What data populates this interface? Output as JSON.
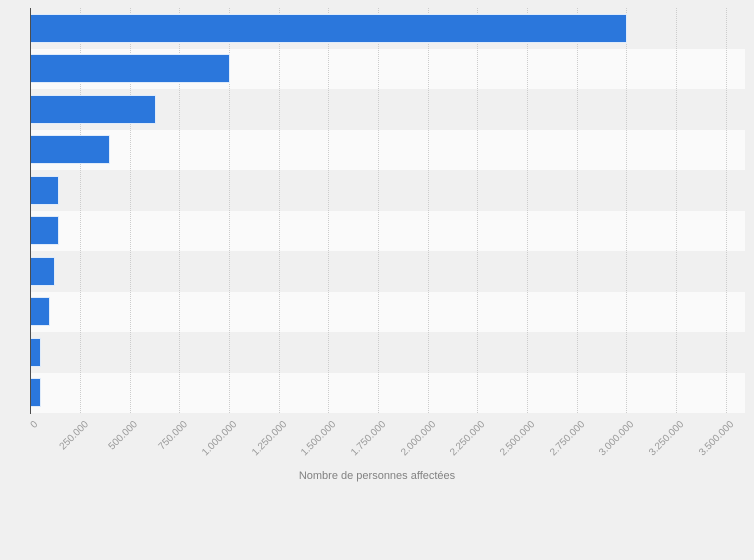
{
  "chart_data": {
    "type": "bar",
    "orientation": "horizontal",
    "xlabel": "Nombre de personnes affectées",
    "xlim": [
      0,
      3500000
    ],
    "grid": true,
    "legend": false,
    "x_tick_labels": [
      "0",
      "250.000",
      "500.000",
      "750.000",
      "1.000.000",
      "1.250.000",
      "1.500.000",
      "1.750.000",
      "2.000.000",
      "2.250.000",
      "2.500.000",
      "2.750.000",
      "3.000.000",
      "3.250.000",
      "3.500.000"
    ],
    "x_tick_values": [
      0,
      250000,
      500000,
      750000,
      1000000,
      1250000,
      1500000,
      1750000,
      2000000,
      2250000,
      2500000,
      2750000,
      3000000,
      3250000,
      3500000
    ],
    "values": [
      3000000,
      1000000,
      630000,
      400000,
      142000,
      142000,
      122000,
      94000,
      50000,
      50000
    ]
  },
  "colors": {
    "bar": "#2b77dc",
    "page_background": "#f0f0f0",
    "band_light": "#fafafa",
    "band_dark": "#f0f0f0",
    "gridline": "#cccccc",
    "axis_line": "#4d4d4d",
    "tick_label": "#9a9a9a",
    "axis_title": "#828282"
  }
}
